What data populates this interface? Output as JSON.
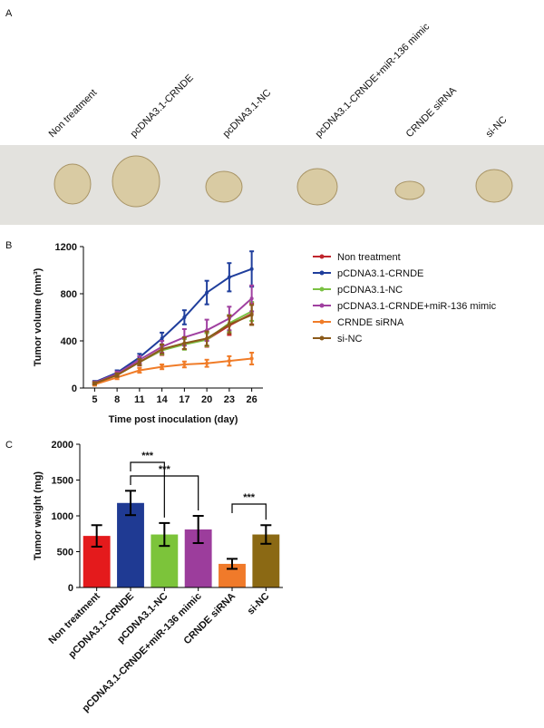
{
  "panel_a": {
    "panel": "A",
    "samples": [
      "Non treatment",
      "pcDNA3.1-CRNDE",
      "pcDNA3.1-NC",
      "pcDNA3.1-CRNDE+miR-136 mimic",
      "CRNDE siRNA",
      "si-NC"
    ]
  },
  "chart_data": [
    {
      "type": "line",
      "panel": "B",
      "x_label": "Time post inoculation (day)",
      "y_label": "Tumor volume (mm³)",
      "x": [
        5,
        8,
        11,
        14,
        17,
        20,
        23,
        26
      ],
      "xlim": [
        3.5,
        27.5
      ],
      "xticks": [
        5,
        8,
        11,
        14,
        17,
        20,
        23,
        26
      ],
      "ylim": [
        0,
        1200
      ],
      "yticks": [
        0,
        400,
        800,
        1200
      ],
      "series": [
        {
          "name": "Non treatment",
          "color": "#c0262d",
          "values": [
            40,
            110,
            220,
            320,
            380,
            410,
            530,
            630
          ],
          "errors": [
            10,
            15,
            30,
            40,
            50,
            60,
            80,
            90
          ]
        },
        {
          "name": "pCDNA3.1-CRNDE",
          "color": "#1f3e9c",
          "values": [
            50,
            130,
            260,
            420,
            600,
            810,
            940,
            1010
          ],
          "errors": [
            10,
            20,
            30,
            50,
            60,
            100,
            120,
            150
          ]
        },
        {
          "name": "pCDNA3.1-NC",
          "color": "#7ac143",
          "values": [
            40,
            110,
            220,
            320,
            370,
            410,
            550,
            650
          ],
          "errors": [
            10,
            15,
            25,
            35,
            45,
            55,
            70,
            80
          ]
        },
        {
          "name": "pCDNA3.1-CRNDE+miR-136 mimic",
          "color": "#a040a0",
          "values": [
            45,
            120,
            240,
            350,
            430,
            490,
            590,
            760
          ],
          "errors": [
            10,
            20,
            30,
            50,
            70,
            90,
            100,
            110
          ]
        },
        {
          "name": "CRNDE siRNA",
          "color": "#f07c28",
          "values": [
            30,
            90,
            150,
            180,
            200,
            210,
            230,
            250
          ],
          "errors": [
            10,
            15,
            20,
            20,
            25,
            30,
            40,
            50
          ]
        },
        {
          "name": "si-NC",
          "color": "#8b5a1a",
          "values": [
            40,
            110,
            220,
            330,
            380,
            420,
            540,
            620
          ],
          "errors": [
            10,
            15,
            25,
            40,
            50,
            60,
            75,
            85
          ]
        }
      ]
    },
    {
      "type": "bar",
      "panel": "C",
      "y_label": "Tumor weight (mg)",
      "categories": [
        "Non treatment",
        "pCDNA3.1-CRNDE",
        "pCDNA3.1-NC",
        "pCDNA3.1-CRNDE+miR-136 mimic",
        "CRNDE siRNA",
        "si-NC"
      ],
      "values": [
        720,
        1180,
        740,
        810,
        330,
        740
      ],
      "errors": [
        150,
        170,
        160,
        190,
        70,
        130
      ],
      "colors": [
        "#e41a1c",
        "#1f3a93",
        "#7cc43a",
        "#9c3d9c",
        "#f07a2a",
        "#8b6914"
      ],
      "ylim": [
        0,
        2000
      ],
      "yticks": [
        0,
        500,
        1000,
        1500,
        2000
      ],
      "annotations": [
        {
          "text": "***",
          "between": [
            1,
            2
          ]
        },
        {
          "text": "***",
          "between": [
            1,
            3
          ]
        },
        {
          "text": "***",
          "between": [
            4,
            5
          ]
        }
      ]
    }
  ]
}
